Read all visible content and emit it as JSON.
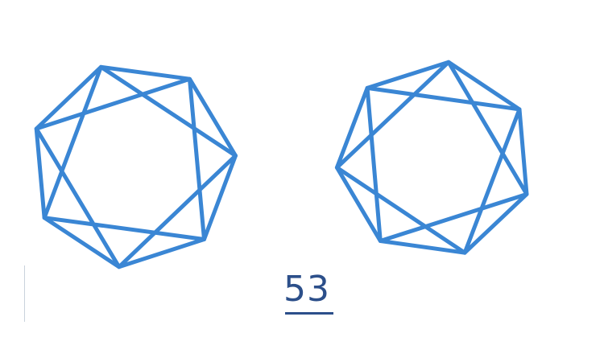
{
  "plate_number": "53",
  "colors": {
    "line": "#3a86d4",
    "number": "#2c4f8a",
    "background": "#ffffff"
  },
  "figures": [
    {
      "name": "left-heptagram",
      "shape": "heptagon-with-heptagram",
      "sides": 7
    },
    {
      "name": "right-heptagram",
      "shape": "heptagon-with-heptagram",
      "sides": 7
    }
  ]
}
